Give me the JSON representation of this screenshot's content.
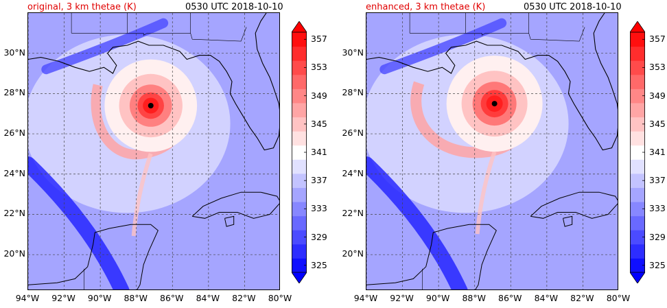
{
  "panels": [
    {
      "id": "original",
      "title_left": "original, 3 km thetae (K)",
      "title_right": "0530 UTC 2018-10-10",
      "storm_center": {
        "lon": -87.2,
        "lat": 27.4
      },
      "eyewall_intensity": 0.75,
      "spiral_band_extent": 0.7
    },
    {
      "id": "enhanced",
      "title_left": "enhanced, 3 km thetae (K)",
      "title_right": "0530 UTC 2018-10-10",
      "storm_center": {
        "lon": -86.9,
        "lat": 27.5
      },
      "eyewall_intensity": 1.0,
      "spiral_band_extent": 1.0
    }
  ],
  "map": {
    "lon_range": [
      -94,
      -80
    ],
    "lat_range": [
      18.2,
      32.0
    ],
    "lon_ticks": [
      -94,
      -92,
      -90,
      -88,
      -86,
      -84,
      -82,
      -80
    ],
    "lon_tick_labels": [
      "94°W",
      "92°W",
      "90°W",
      "88°W",
      "86°W",
      "84°W",
      "82°W",
      "80°W"
    ],
    "lat_ticks": [
      20,
      22,
      24,
      26,
      28,
      30
    ],
    "lat_tick_labels": [
      "20°N",
      "22°N",
      "24°N",
      "26°N",
      "28°N",
      "30°N"
    ],
    "gridlines": true
  },
  "colorbar": {
    "min": 325,
    "max": 359,
    "step": 2,
    "extend": "both",
    "tick_labels": [
      "325",
      "329",
      "333",
      "337",
      "341",
      "345",
      "349",
      "353",
      "357"
    ],
    "low_color": "#0000ff",
    "mid_color": "#ffffff",
    "high_color": "#ff0000"
  },
  "colors": {
    "coastline": "#000000",
    "grid": "#444444",
    "eye": "#000000",
    "title_accent": "#e00000"
  }
}
